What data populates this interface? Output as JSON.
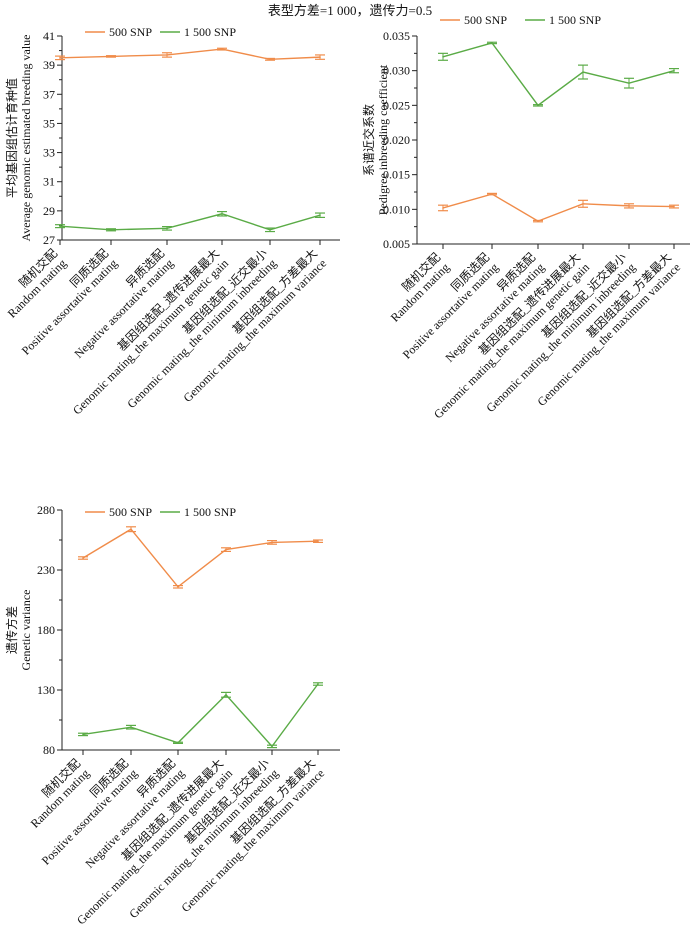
{
  "figure_title": "表型方差=1 000，遗传力=0.5",
  "colors": {
    "snp500": "#f08c4a",
    "snp1500": "#5aab46",
    "axis": "#222222"
  },
  "chart_data": [
    {
      "type": "line",
      "ylabel_cn": "平均基因组估计育种值",
      "ylabel_en": "Average genomic estimated breeding value",
      "ylim": [
        27,
        41
      ],
      "yticks": [
        27,
        29,
        31,
        33,
        35,
        37,
        39,
        41
      ],
      "ytick_labels": [
        "27",
        "29",
        "31",
        "33",
        "35",
        "37",
        "39",
        "41"
      ],
      "categories_cn": [
        "随机交配",
        "同质选配",
        "异质选配",
        "基因组选配_遗传进展最大",
        "基因组选配_近交最小",
        "基因组选配_方差最大"
      ],
      "categories_en": [
        "Random mating",
        "Positive assortative mating",
        "Negative assortative mating",
        "Genomic mating_the maximum genetic gain",
        "Genomic mating_the minimum inbreeding",
        "Genomic mating_the maximum variance"
      ],
      "series": [
        {
          "name": "500 SNP",
          "values": [
            39.5,
            39.6,
            39.7,
            40.1,
            39.4,
            39.55
          ],
          "errors": [
            0.12,
            0.05,
            0.15,
            0.06,
            0.06,
            0.15
          ]
        },
        {
          "name": "1 500 SNP",
          "values": [
            27.95,
            27.7,
            27.8,
            28.8,
            27.7,
            28.7
          ],
          "errors": [
            0.1,
            0.07,
            0.12,
            0.15,
            0.12,
            0.15
          ]
        }
      ]
    },
    {
      "type": "line",
      "ylabel_cn": "系谱近交系数",
      "ylabel_en": "Pedigree inbreeding coefficient",
      "ylim": [
        0.005,
        0.035
      ],
      "yticks": [
        0.005,
        0.01,
        0.015,
        0.02,
        0.025,
        0.03,
        0.035
      ],
      "ytick_labels": [
        "0.005",
        "0.010",
        "0.015",
        "0.020",
        "0.025",
        "0.030",
        "0.035"
      ],
      "categories_cn": [
        "随机交配",
        "同质选配",
        "异质选配",
        "基因组选配_遗传进展最大",
        "基因组选配_近交最小",
        "基因组选配_方差最大"
      ],
      "categories_en": [
        "Random mating",
        "Positive assortative mating",
        "Negative assortative mating",
        "Genomic mating_the maximum genetic gain",
        "Genomic mating_the minimum inbreeding",
        "Genomic mating_the maximum variance"
      ],
      "series": [
        {
          "name": "500 SNP",
          "values": [
            0.0102,
            0.0122,
            0.0083,
            0.0108,
            0.0105,
            0.0104
          ],
          "errors": [
            0.0004,
            0.0001,
            0.0001,
            0.0005,
            0.0003,
            0.0002
          ]
        },
        {
          "name": "1 500 SNP",
          "values": [
            0.032,
            0.034,
            0.025,
            0.0298,
            0.0282,
            0.03
          ],
          "errors": [
            0.0005,
            0.0001,
            0.0001,
            0.001,
            0.0007,
            0.0003
          ]
        }
      ]
    },
    {
      "type": "line",
      "ylabel_cn": "遗传方差",
      "ylabel_en": "Genetic variance",
      "ylim": [
        80,
        280
      ],
      "yticks": [
        80,
        130,
        180,
        230,
        280
      ],
      "ytick_labels": [
        "80",
        "130",
        "180",
        "230",
        "280"
      ],
      "categories_cn": [
        "随机交配",
        "同质选配",
        "异质选配",
        "基因组选配_遗传进展最大",
        "基因组选配_近交最小",
        "基因组选配_方差最大"
      ],
      "categories_en": [
        "Random mating",
        "Positive assortative mating",
        "Negative assortative mating",
        "Genomic mating_the maximum genetic gain",
        "Genomic mating_the minimum inbreeding",
        "Genomic mating_the maximum variance"
      ],
      "series": [
        {
          "name": "500 SNP",
          "values": [
            240,
            264,
            216,
            247,
            253,
            254
          ],
          "errors": [
            1,
            2,
            1,
            1.5,
            1.5,
            1
          ]
        },
        {
          "name": "1 500 SNP",
          "values": [
            93,
            99,
            86,
            126,
            83,
            135
          ],
          "errors": [
            1,
            1.5,
            0.5,
            2,
            1,
            1
          ]
        }
      ]
    }
  ]
}
